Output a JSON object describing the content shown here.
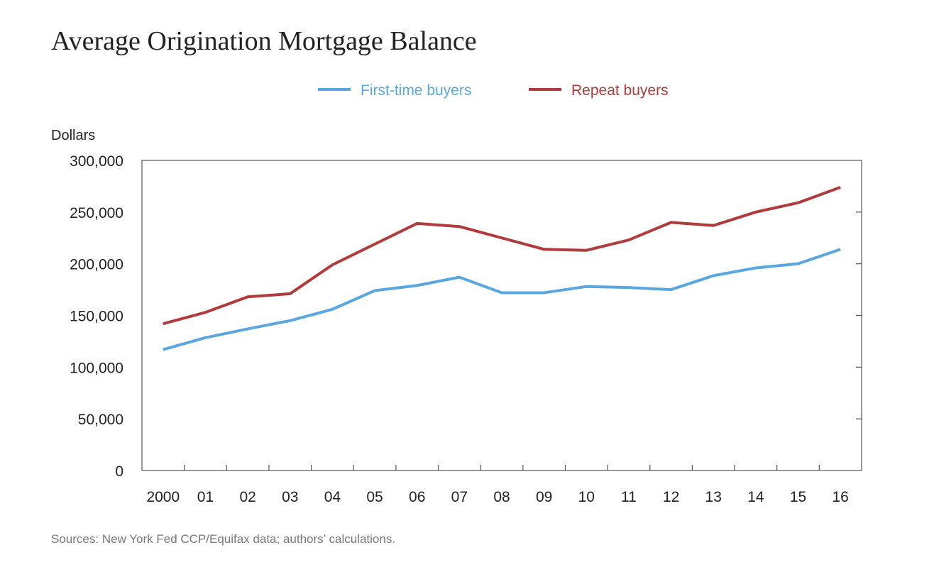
{
  "chart_data": {
    "type": "line",
    "title": "Average Origination Mortgage Balance",
    "ylabel": "Dollars",
    "xlabel": "",
    "source": "Sources: New York Fed CCP/Equifax data; authors’ calculations.",
    "categories": [
      "2000",
      "01",
      "02",
      "03",
      "04",
      "05",
      "06",
      "07",
      "08",
      "09",
      "10",
      "11",
      "12",
      "13",
      "14",
      "15",
      "16"
    ],
    "ylim": [
      0,
      300000
    ],
    "yticks": [
      "0",
      "50,000",
      "100,000",
      "150,000",
      "200,000",
      "250,000",
      "300,000"
    ],
    "ytick_values": [
      0,
      50000,
      100000,
      150000,
      200000,
      250000,
      300000
    ],
    "grid": false,
    "legend": "top",
    "series": [
      {
        "name": "First-time buyers",
        "color": "#5aa7e0",
        "values": [
          117000,
          128500,
          137000,
          145000,
          156000,
          174000,
          179000,
          187000,
          172000,
          172000,
          178000,
          177000,
          175000,
          188500,
          196000,
          200000,
          214000
        ]
      },
      {
        "name": "Repeat buyers",
        "color": "#b13a3a",
        "values": [
          142000,
          153000,
          168000,
          171000,
          199000,
          219000,
          239000,
          236000,
          225000,
          214000,
          213000,
          223000,
          240000,
          237000,
          250000,
          259000,
          274000
        ]
      }
    ]
  }
}
